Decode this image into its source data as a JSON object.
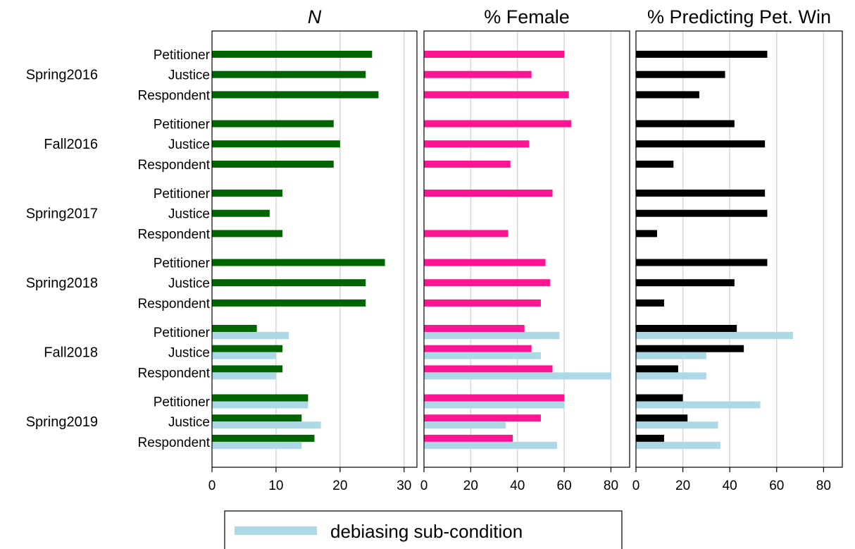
{
  "terms": [
    "Spring2016",
    "Fall2016",
    "Spring2017",
    "Spring2018",
    "Fall2018",
    "Spring2019"
  ],
  "roles": [
    "Petitioner",
    "Justice",
    "Respondent"
  ],
  "legend": {
    "label": "debiasing sub-condition",
    "color": "#add8e6"
  },
  "chart_data": [
    {
      "type": "bar",
      "orientation": "horizontal",
      "title": "N",
      "title_italic": true,
      "xlim": [
        0,
        32
      ],
      "ticks": [
        0,
        10,
        20,
        30
      ],
      "gridlines": [
        10,
        20,
        30
      ],
      "grid": true,
      "color_main": "#006400",
      "color_sub": "#add8e6",
      "main": [
        [
          25,
          24,
          26
        ],
        [
          19,
          20,
          19
        ],
        [
          11,
          9,
          11
        ],
        [
          27,
          24,
          24
        ],
        [
          7,
          11,
          11
        ],
        [
          15,
          14,
          16
        ]
      ],
      "sub": [
        null,
        null,
        null,
        null,
        [
          12,
          10,
          10
        ],
        [
          15,
          17,
          14
        ]
      ]
    },
    {
      "type": "bar",
      "orientation": "horizontal",
      "title": "% Female",
      "title_italic": false,
      "xlim": [
        0,
        88
      ],
      "ticks": [
        0,
        20,
        40,
        60,
        80
      ],
      "gridlines": [
        20,
        40,
        60,
        80
      ],
      "grid": true,
      "color_main": "#ff1493",
      "color_sub": "#add8e6",
      "main": [
        [
          60,
          46,
          62
        ],
        [
          63,
          45,
          37
        ],
        [
          55,
          0,
          36
        ],
        [
          52,
          54,
          50
        ],
        [
          43,
          46,
          55
        ],
        [
          60,
          50,
          38
        ]
      ],
      "sub": [
        null,
        null,
        null,
        null,
        [
          58,
          50,
          80
        ],
        [
          60,
          35,
          57
        ]
      ]
    },
    {
      "type": "bar",
      "orientation": "horizontal",
      "title": "% Predicting Pet. Win",
      "title_italic": false,
      "xlim": [
        0,
        88
      ],
      "ticks": [
        0,
        20,
        40,
        60,
        80
      ],
      "gridlines": [
        20,
        40,
        60,
        80
      ],
      "grid": true,
      "color_main": "#000000",
      "color_sub": "#add8e6",
      "main": [
        [
          56,
          38,
          27
        ],
        [
          42,
          55,
          16
        ],
        [
          55,
          56,
          9
        ],
        [
          56,
          42,
          12
        ],
        [
          43,
          46,
          18
        ],
        [
          20,
          22,
          12
        ]
      ],
      "sub": [
        null,
        null,
        null,
        null,
        [
          67,
          30,
          30
        ],
        [
          53,
          35,
          36
        ]
      ]
    }
  ]
}
